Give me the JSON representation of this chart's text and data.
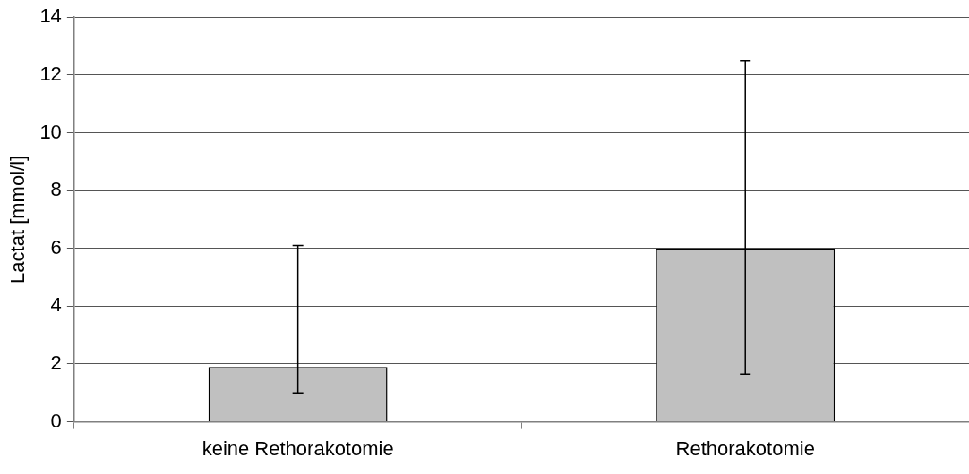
{
  "chart_data": {
    "type": "bar",
    "ylabel": "Lactat [mmol/l]",
    "categories": [
      "keine Rethorakotomie",
      "Rethorakotomie"
    ],
    "values": [
      1.9,
      6.0
    ],
    "color": "#c0c0c0",
    "errors": [
      [
        1.0,
        6.1
      ],
      [
        1.65,
        12.5
      ]
    ],
    "ylim": [
      0,
      14
    ],
    "yticks": [
      0,
      2,
      4,
      6,
      8,
      10,
      12,
      14
    ],
    "grid": "y",
    "legend": false
  }
}
